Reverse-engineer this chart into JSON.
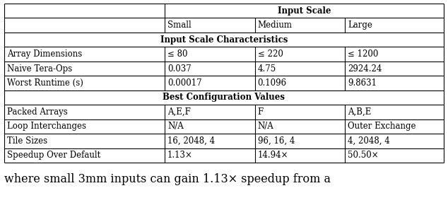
{
  "figsize": [
    6.34,
    2.9
  ],
  "dpi": 100,
  "rows_section1": [
    [
      "Array Dimensions",
      "≤ 80",
      "≤ 220",
      "≤ 1200"
    ],
    [
      "Naive Tera-Ops",
      "0.037",
      "4.75",
      "2924.24"
    ],
    [
      "Worst Runtime (s)",
      "0.00017",
      "0.1096",
      "9.8631"
    ]
  ],
  "section2_label": "Best Configuration Values",
  "rows_section2": [
    [
      "Packed Arrays",
      "A,E,F",
      "F",
      "A,B,E"
    ],
    [
      "Loop Interchanges",
      "N/A",
      "N/A",
      "Outer Exchange"
    ],
    [
      "Tile Sizes",
      "16, 2048, 4",
      "96, 16, 4",
      "4, 2048, 4"
    ],
    [
      "Speedup Over Default",
      "1.13×",
      "14.94×",
      "50.50×"
    ]
  ],
  "footer_text": "where small 3mm inputs can gain 1.13× speedup from a",
  "font_family": "serif",
  "font_size": 8.5,
  "footer_font_size": 11.5
}
